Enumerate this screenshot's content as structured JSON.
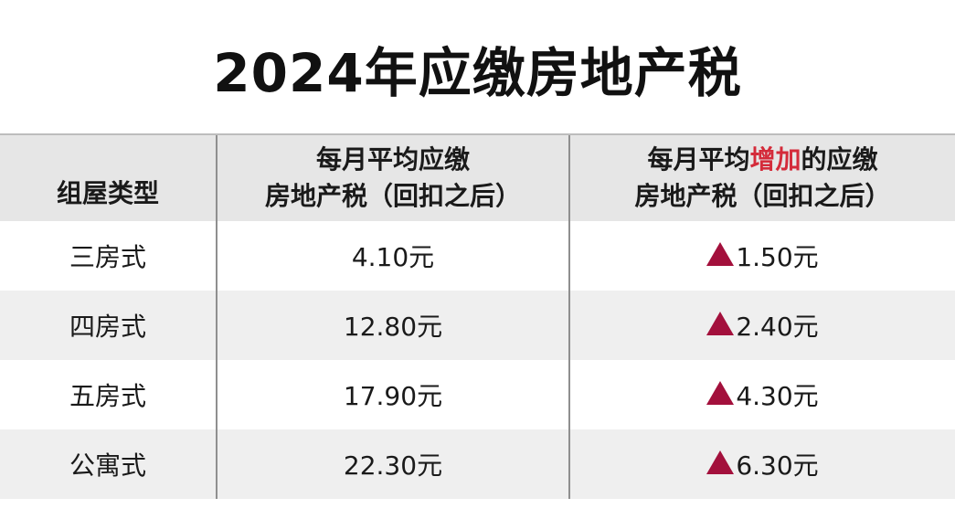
{
  "title": "2024年应缴房地产税",
  "header": {
    "col1": "组屋类型",
    "col2_line1": "每月平均应缴",
    "col2_line2": "房地产税（回扣之后）",
    "col3_line1_pre": "每月平均",
    "col3_line1_accent": "增加",
    "col3_line1_post": "的应缴",
    "col3_line2": "房地产税（回扣之后）"
  },
  "rows": [
    {
      "type": "三房式",
      "monthly": "4.10元",
      "increase": "1.50元"
    },
    {
      "type": "四房式",
      "monthly": "12.80元",
      "increase": "2.40元"
    },
    {
      "type": "五房式",
      "monthly": "17.90元",
      "increase": "4.30元"
    },
    {
      "type": "公寓式",
      "monthly": "22.30元",
      "increase": "6.30元"
    }
  ],
  "colors": {
    "accent_text": "#d42b3a",
    "up_triangle": "#a3103c",
    "header_bg": "#e6e6e6",
    "stripe_bg": "#efefef"
  },
  "icons": {
    "increase": "up-triangle-icon"
  }
}
